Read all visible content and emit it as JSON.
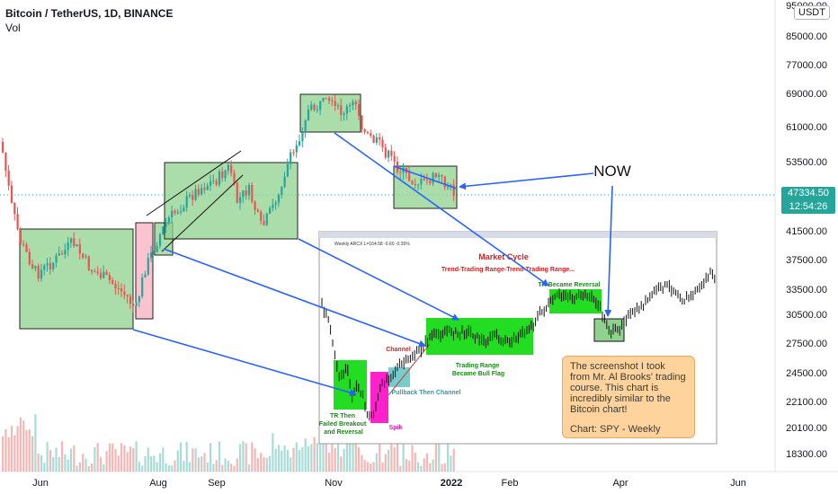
{
  "header": {
    "title": "Bitcoin / TetherUS, 1D, BINANCE",
    "volume_label": "Vol"
  },
  "currency_button": "USDT",
  "price_tag": {
    "price": "47334.50",
    "countdown": "12:54:26"
  },
  "annotation_now": "NOW",
  "note": {
    "text1": "The screenshot I took from Mr. Al Brooks' trading course. This chart is incredibly similar to the Bitcoin chart!",
    "text2": "Chart: SPY - Weekly"
  },
  "inset": {
    "header": "Weekly ARCX L=164.58 -0.60 -0.35%",
    "title": "Market Cycle",
    "subtitle": "Trend-Trading Range-Trend-Trading Range...",
    "labels": {
      "tr_reversal": "TR Became Reversal",
      "channel": "Channel",
      "trading_range": "Trading Range\nBecame Bull Flag",
      "pullback": "Pullback Then Channel",
      "tr_then": "TR Then\nFailed Breakout\nand Reversal",
      "spike": "Spik"
    }
  },
  "colors": {
    "up": "#26a69a",
    "down": "#ef5350",
    "box_fill": "#8fd18f",
    "box_stroke": "#222222",
    "pink": "#f8b8c8",
    "arrow": "#2962ff",
    "inset_green": "#22dd22",
    "inset_magenta": "#ff22cc",
    "inset_cyan": "#77cccc"
  },
  "chart_data": {
    "type": "candlestick",
    "y_axis_ticks": [
      "95000.00",
      "85000.00",
      "77000.00",
      "69000.00",
      "61000.00",
      "53500.00",
      "47334.50",
      "41500.00",
      "37500.00",
      "33500.00",
      "30500.00",
      "27500.00",
      "24500.00",
      "22100.00",
      "20100.00",
      "18300.00"
    ],
    "x_axis_ticks": [
      "Jun",
      "Aug",
      "Sep",
      "Nov",
      "2022",
      "Feb",
      "Apr",
      "Jun"
    ],
    "last_price": 47334.5,
    "approx_close_series": [
      {
        "date": "2021-05-19",
        "close": 42500
      },
      {
        "date": "2021-06-01",
        "close": 36700
      },
      {
        "date": "2021-06-15",
        "close": 40200
      },
      {
        "date": "2021-07-01",
        "close": 33500
      },
      {
        "date": "2021-07-20",
        "close": 29800
      },
      {
        "date": "2021-08-01",
        "close": 39800
      },
      {
        "date": "2021-08-15",
        "close": 47000
      },
      {
        "date": "2021-09-06",
        "close": 52500
      },
      {
        "date": "2021-09-21",
        "close": 40500
      },
      {
        "date": "2021-10-01",
        "close": 48000
      },
      {
        "date": "2021-10-20",
        "close": 64000
      },
      {
        "date": "2021-11-10",
        "close": 67500
      },
      {
        "date": "2021-11-25",
        "close": 57000
      },
      {
        "date": "2021-12-04",
        "close": 49000
      },
      {
        "date": "2021-12-20",
        "close": 47000
      },
      {
        "date": "2022-01-01",
        "close": 47300
      }
    ]
  }
}
